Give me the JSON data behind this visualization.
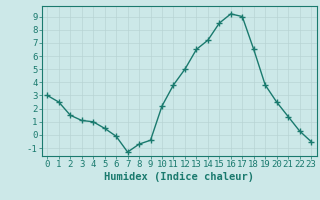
{
  "x": [
    0,
    1,
    2,
    3,
    4,
    5,
    6,
    7,
    8,
    9,
    10,
    11,
    12,
    13,
    14,
    15,
    16,
    17,
    18,
    19,
    20,
    21,
    22,
    23
  ],
  "y": [
    3,
    2.5,
    1.5,
    1.1,
    1.0,
    0.5,
    -0.1,
    -1.3,
    -0.7,
    -0.4,
    2.2,
    3.8,
    5.0,
    6.5,
    7.2,
    8.5,
    9.2,
    9.0,
    6.5,
    3.8,
    2.5,
    1.4,
    0.3,
    -0.5
  ],
  "line_color": "#1a7a6e",
  "marker": "+",
  "marker_color": "#1a7a6e",
  "bg_color": "#cce8e8",
  "grid_color": "#b8d4d4",
  "xlabel": "Humidex (Indice chaleur)",
  "xlim": [
    -0.5,
    23.5
  ],
  "ylim": [
    -1.6,
    9.8
  ],
  "yticks": [
    -1,
    0,
    1,
    2,
    3,
    4,
    5,
    6,
    7,
    8,
    9
  ],
  "xticks": [
    0,
    1,
    2,
    3,
    4,
    5,
    6,
    7,
    8,
    9,
    10,
    11,
    12,
    13,
    14,
    15,
    16,
    17,
    18,
    19,
    20,
    21,
    22,
    23
  ],
  "xtick_labels": [
    "0",
    "1",
    "2",
    "3",
    "4",
    "5",
    "6",
    "7",
    "8",
    "9",
    "10",
    "11",
    "12",
    "13",
    "14",
    "15",
    "16",
    "17",
    "18",
    "19",
    "20",
    "21",
    "22",
    "23"
  ],
  "tick_color": "#1a7a6e",
  "font_color": "#1a7a6e",
  "xlabel_fontsize": 7.5,
  "tick_fontsize": 6.5,
  "linewidth": 1.0,
  "markersize": 4
}
